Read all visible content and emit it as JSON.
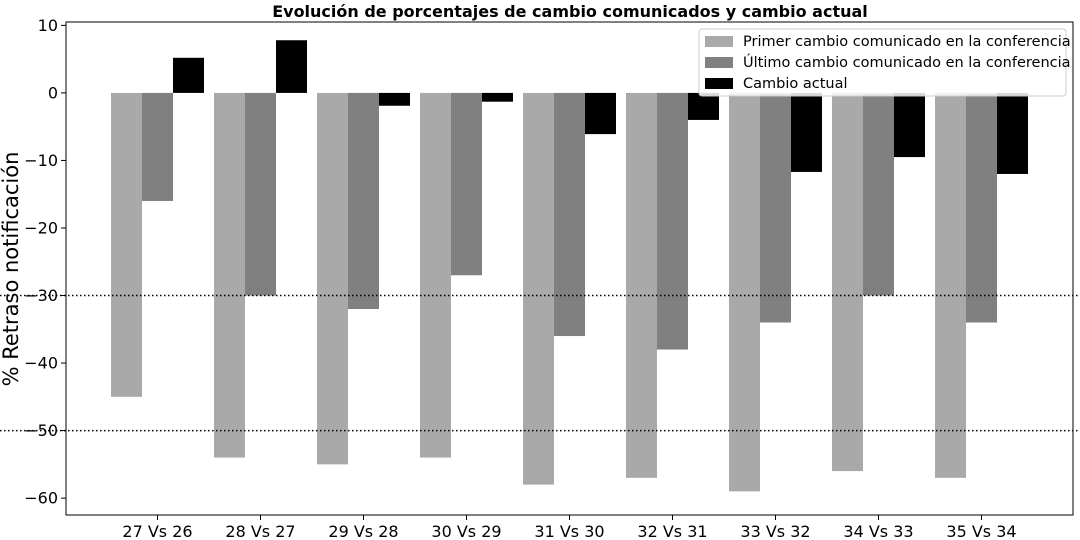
{
  "chart_data": {
    "type": "bar",
    "title": "Evolución de porcentajes de cambio comunicados y cambio actual",
    "xlabel": "",
    "ylabel": "% Retraso notificación",
    "ylim": [
      -62.5,
      10.5
    ],
    "yticks": [
      10,
      0,
      -10,
      -20,
      -30,
      -40,
      -50,
      -60
    ],
    "ytick_labels": [
      "10",
      "0",
      "−10",
      "−20",
      "−30",
      "−40",
      "−50",
      "−60"
    ],
    "categories": [
      "27 Vs 26",
      "28 Vs 27",
      "29 Vs 28",
      "30 Vs 29",
      "31 Vs 30",
      "32 Vs 31",
      "33 Vs 32",
      "34 Vs 33",
      "35 Vs 34"
    ],
    "series": [
      {
        "name": "Primer cambio comunicado en la conferencia",
        "color": "#a9a9a9",
        "values": [
          -45,
          -54,
          -55,
          -54,
          -58,
          -57,
          -59,
          -56,
          -57
        ]
      },
      {
        "name": "Último cambio comunicado en la conferencia",
        "color": "#808080",
        "values": [
          -16,
          -30,
          -32,
          -27,
          -36,
          -38,
          -34,
          -30,
          -34
        ]
      },
      {
        "name": "Cambio actual",
        "color": "#000000",
        "values": [
          5.2,
          7.8,
          -1.9,
          -1.3,
          -6.1,
          -4.0,
          -11.7,
          -9.5,
          -12.0
        ]
      }
    ],
    "reference_lines": [
      -30,
      -50
    ],
    "reference_line_style": "dotted",
    "grid": false,
    "legend_position": "top-right"
  }
}
